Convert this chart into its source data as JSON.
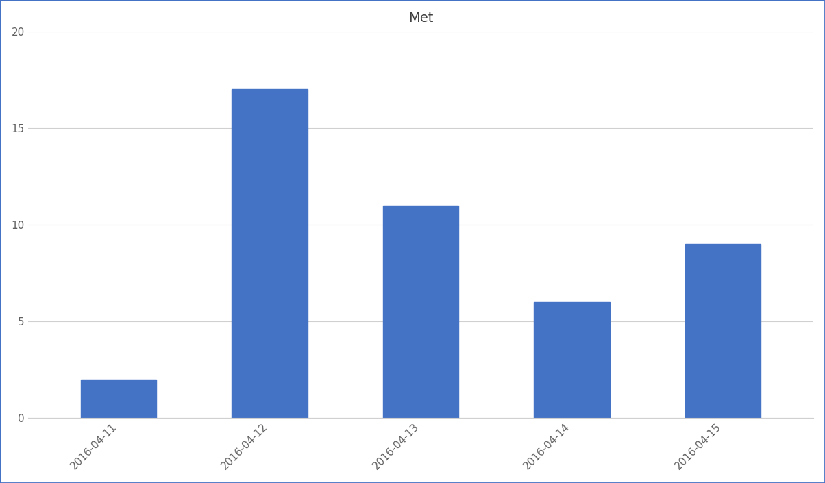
{
  "title": "Met",
  "categories": [
    "2016-04-11",
    "2016-04-12",
    "2016-04-13",
    "2016-04-14",
    "2016-04-15"
  ],
  "values": [
    2,
    17,
    11,
    6,
    9
  ],
  "bar_color": "#4472C4",
  "ylim": [
    0,
    20
  ],
  "yticks": [
    0,
    5,
    10,
    15,
    20
  ],
  "title_fontsize": 14,
  "tick_fontsize": 11,
  "background_color": "#ffffff",
  "border_color": "#4472C4",
  "grid_color": "#d0d0d0",
  "bar_width": 0.5
}
